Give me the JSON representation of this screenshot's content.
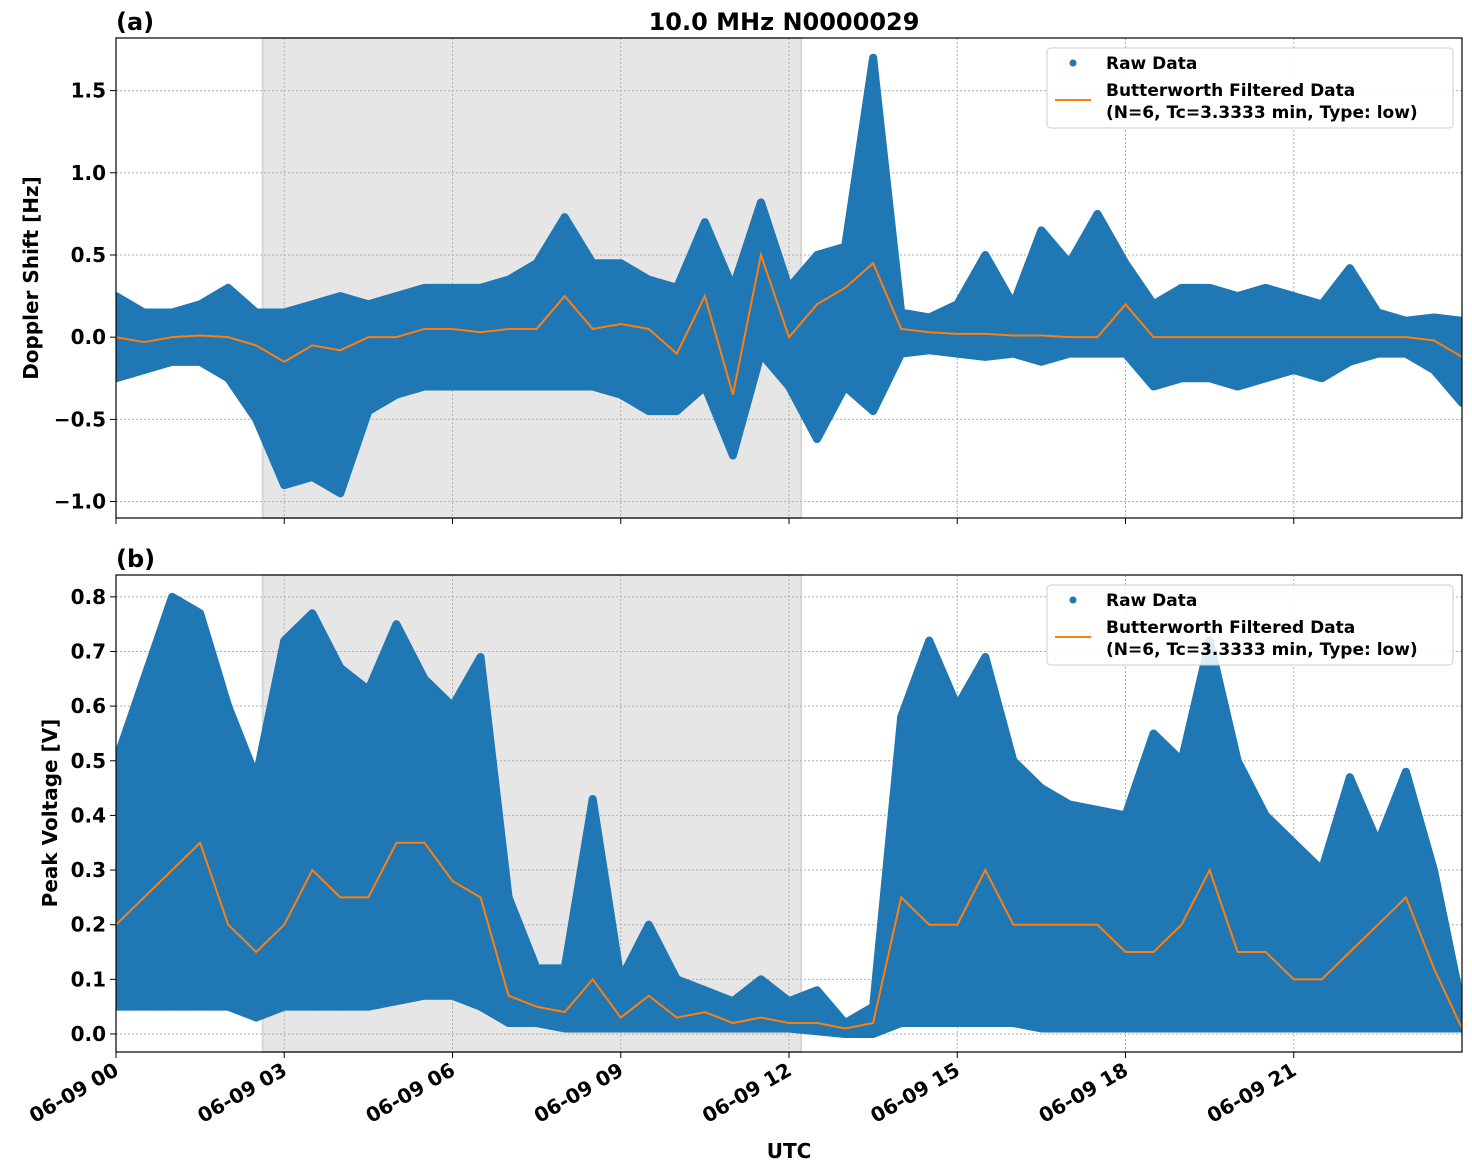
{
  "figure_title": "10.0 MHz N0000029",
  "xlabel": "UTC",
  "x_tick_labels": [
    "06-09 00",
    "06-09 03",
    "06-09 06",
    "06-09 09",
    "06-09 12",
    "06-09 15",
    "06-09 18",
    "06-09 21"
  ],
  "x_tick_hours": [
    0,
    3,
    6,
    9,
    12,
    15,
    18,
    21
  ],
  "colors": {
    "raw": "#1f77b4",
    "filtered": "#ff7f0e",
    "shade": "#e6e6e6"
  },
  "chart_data": [
    {
      "type": "scatter+line",
      "panel_label": "(a)",
      "ylabel": "Doppler Shift [Hz]",
      "xlim": [
        "06-09 00:00",
        "06-10 00:00"
      ],
      "ylim": [
        -1.1,
        1.82
      ],
      "y_ticks": [
        -1.0,
        -0.5,
        0.0,
        0.5,
        1.0,
        1.5
      ],
      "y_tick_labels": [
        "−1.0",
        "−0.5",
        "0.0",
        "0.5",
        "1.0",
        "1.5"
      ],
      "grid": true,
      "shaded_span": [
        "02:37",
        "12:13"
      ],
      "legend": {
        "placement": "top-right",
        "entries": [
          "Raw Data",
          "Butterworth Filtered Data",
          "(N=6, Tc=3.3333 min, Type: low)"
        ]
      },
      "x": [
        "00:00",
        "00:30",
        "01:00",
        "01:30",
        "02:00",
        "02:30",
        "03:00",
        "03:30",
        "04:00",
        "04:30",
        "05:00",
        "05:30",
        "06:00",
        "06:30",
        "07:00",
        "07:30",
        "08:00",
        "08:30",
        "09:00",
        "09:30",
        "10:00",
        "10:30",
        "11:00",
        "11:30",
        "12:00",
        "12:30",
        "13:00",
        "13:30",
        "14:00",
        "14:30",
        "15:00",
        "15:30",
        "16:00",
        "16:30",
        "17:00",
        "17:30",
        "18:00",
        "18:30",
        "19:00",
        "19:30",
        "20:00",
        "20:30",
        "21:00",
        "21:30",
        "22:00",
        "22:30",
        "23:00",
        "23:30",
        "24:00"
      ],
      "series": [
        {
          "name": "Raw Data",
          "kind": "scatter-envelope",
          "max": [
            0.25,
            0.15,
            0.15,
            0.2,
            0.3,
            0.15,
            0.15,
            0.2,
            0.25,
            0.2,
            0.25,
            0.3,
            0.3,
            0.3,
            0.35,
            0.45,
            0.73,
            0.45,
            0.45,
            0.35,
            0.3,
            0.7,
            0.3,
            0.82,
            0.3,
            0.5,
            0.55,
            1.7,
            0.15,
            0.12,
            0.2,
            0.5,
            0.2,
            0.65,
            0.45,
            0.75,
            0.45,
            0.2,
            0.3,
            0.3,
            0.25,
            0.3,
            0.25,
            0.2,
            0.42,
            0.15,
            0.1,
            0.12,
            0.1
          ],
          "min": [
            -0.25,
            -0.2,
            -0.15,
            -0.15,
            -0.25,
            -0.5,
            -0.9,
            -0.85,
            -0.95,
            -0.45,
            -0.35,
            -0.3,
            -0.3,
            -0.3,
            -0.3,
            -0.3,
            -0.3,
            -0.3,
            -0.35,
            -0.45,
            -0.45,
            -0.3,
            -0.72,
            -0.1,
            -0.3,
            -0.62,
            -0.3,
            -0.45,
            -0.1,
            -0.08,
            -0.1,
            -0.12,
            -0.1,
            -0.15,
            -0.1,
            -0.1,
            -0.1,
            -0.3,
            -0.25,
            -0.25,
            -0.3,
            -0.25,
            -0.2,
            -0.25,
            -0.15,
            -0.1,
            -0.1,
            -0.2,
            -0.4
          ]
        },
        {
          "name": "Butterworth Filtered Data",
          "kind": "line",
          "y": [
            0.0,
            -0.03,
            0.0,
            0.01,
            0.0,
            -0.05,
            -0.15,
            -0.05,
            -0.08,
            0.0,
            0.0,
            0.05,
            0.05,
            0.03,
            0.05,
            0.05,
            0.25,
            0.05,
            0.08,
            0.05,
            -0.1,
            0.25,
            -0.35,
            0.5,
            0.0,
            0.2,
            0.3,
            0.45,
            0.05,
            0.03,
            0.02,
            0.02,
            0.01,
            0.01,
            0.0,
            0.0,
            0.2,
            0.0,
            0.0,
            0.0,
            0.0,
            0.0,
            0.0,
            0.0,
            0.0,
            0.0,
            0.0,
            -0.02,
            -0.12
          ]
        }
      ]
    },
    {
      "type": "scatter+line",
      "panel_label": "(b)",
      "ylabel": "Peak Voltage [V]",
      "xlim": [
        "06-09 00:00",
        "06-10 00:00"
      ],
      "ylim": [
        -0.033,
        0.84
      ],
      "y_ticks": [
        0.0,
        0.1,
        0.2,
        0.3,
        0.4,
        0.5,
        0.6,
        0.7,
        0.8
      ],
      "y_tick_labels": [
        "0.0",
        "0.1",
        "0.2",
        "0.3",
        "0.4",
        "0.5",
        "0.6",
        "0.7",
        "0.8"
      ],
      "grid": true,
      "shaded_span": [
        "02:37",
        "12:13"
      ],
      "legend": {
        "placement": "top-right",
        "entries": [
          "Raw Data",
          "Butterworth Filtered Data",
          "(N=6, Tc=3.3333 min, Type: low)"
        ]
      },
      "x": [
        "00:00",
        "00:30",
        "01:00",
        "01:30",
        "02:00",
        "02:30",
        "03:00",
        "03:30",
        "04:00",
        "04:30",
        "05:00",
        "05:30",
        "06:00",
        "06:30",
        "07:00",
        "07:30",
        "08:00",
        "08:30",
        "09:00",
        "09:30",
        "10:00",
        "10:30",
        "11:00",
        "11:30",
        "12:00",
        "12:30",
        "13:00",
        "13:30",
        "14:00",
        "14:30",
        "15:00",
        "15:30",
        "16:00",
        "16:30",
        "17:00",
        "17:30",
        "18:00",
        "18:30",
        "19:00",
        "19:30",
        "20:00",
        "20:30",
        "21:00",
        "21:30",
        "22:00",
        "22:30",
        "23:00",
        "23:30",
        "24:00"
      ],
      "series": [
        {
          "name": "Raw Data",
          "kind": "scatter-envelope",
          "max": [
            0.5,
            0.65,
            0.8,
            0.77,
            0.6,
            0.47,
            0.72,
            0.77,
            0.67,
            0.63,
            0.75,
            0.65,
            0.6,
            0.69,
            0.25,
            0.12,
            0.12,
            0.43,
            0.1,
            0.2,
            0.1,
            0.08,
            0.06,
            0.1,
            0.06,
            0.08,
            0.02,
            0.05,
            0.58,
            0.72,
            0.6,
            0.69,
            0.5,
            0.45,
            0.42,
            0.41,
            0.4,
            0.55,
            0.5,
            0.72,
            0.5,
            0.4,
            0.35,
            0.3,
            0.47,
            0.35,
            0.48,
            0.3,
            0.05
          ],
          "min": [
            0.05,
            0.05,
            0.05,
            0.05,
            0.05,
            0.03,
            0.05,
            0.05,
            0.05,
            0.05,
            0.06,
            0.07,
            0.07,
            0.05,
            0.02,
            0.02,
            0.01,
            0.01,
            0.01,
            0.01,
            0.01,
            0.01,
            0.01,
            0.01,
            0.01,
            0.005,
            0.0,
            0.0,
            0.02,
            0.02,
            0.02,
            0.02,
            0.02,
            0.01,
            0.01,
            0.01,
            0.01,
            0.01,
            0.01,
            0.01,
            0.01,
            0.01,
            0.01,
            0.01,
            0.01,
            0.01,
            0.01,
            0.01,
            0.01
          ]
        },
        {
          "name": "Butterworth Filtered Data",
          "kind": "line",
          "y": [
            0.2,
            0.25,
            0.3,
            0.35,
            0.2,
            0.15,
            0.2,
            0.3,
            0.25,
            0.25,
            0.35,
            0.35,
            0.28,
            0.25,
            0.07,
            0.05,
            0.04,
            0.1,
            0.03,
            0.07,
            0.03,
            0.04,
            0.02,
            0.03,
            0.02,
            0.02,
            0.01,
            0.02,
            0.25,
            0.2,
            0.2,
            0.3,
            0.2,
            0.2,
            0.2,
            0.2,
            0.15,
            0.15,
            0.2,
            0.3,
            0.15,
            0.15,
            0.1,
            0.1,
            0.15,
            0.2,
            0.25,
            0.12,
            0.01
          ]
        }
      ]
    }
  ]
}
